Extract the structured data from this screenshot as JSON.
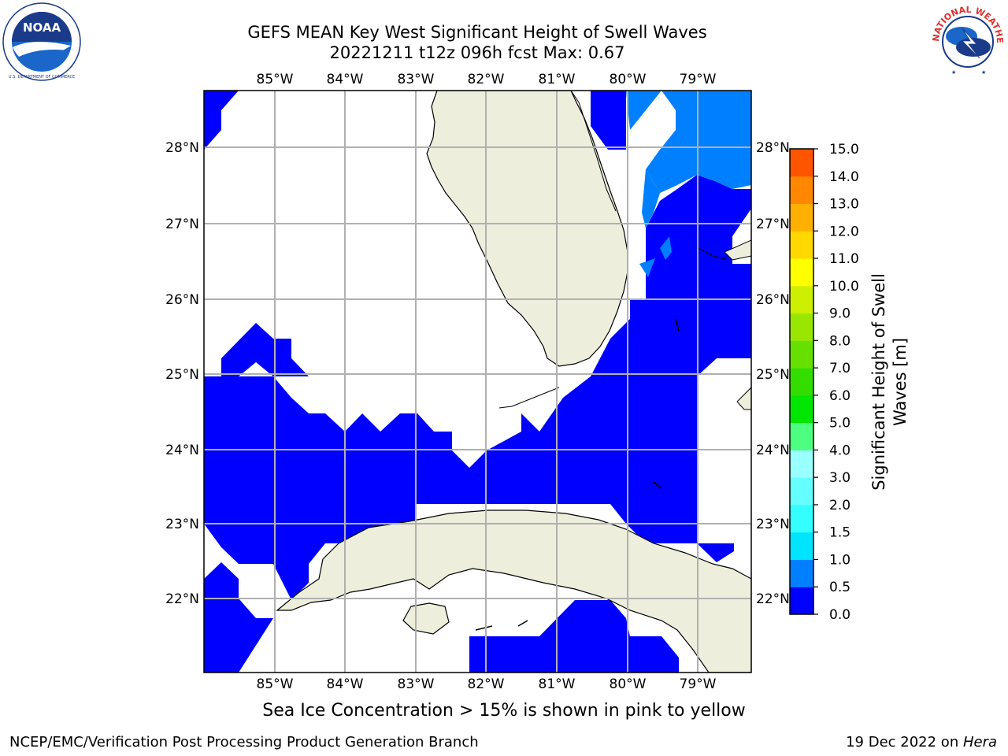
{
  "header": {
    "title_line1": "GEFS MEAN Key West Significant Height of Swell Waves",
    "title_line2": "20221211 t12z 096h fcst   Max: 0.67"
  },
  "logos": {
    "noaa": {
      "text": "NOAA",
      "ring_text": "NATIONAL OCEANIC AND ATMOSPHERIC ADMINISTRATION · U.S. DEPARTMENT OF COMMERCE"
    },
    "nws": {
      "ring_text": "NATIONAL WEATHER SERVICE"
    }
  },
  "map": {
    "lon_labels": [
      "85°W",
      "84°W",
      "83°W",
      "82°W",
      "81°W",
      "80°W",
      "79°W"
    ],
    "lat_labels": [
      "28°N",
      "27°N",
      "26°N",
      "25°N",
      "24°N",
      "23°N",
      "22°N"
    ],
    "land_color": "#eeeedd",
    "ocean_color": "#ffffff",
    "grid_color": "#b0b0b0"
  },
  "colorbar": {
    "label": "Significant Height of Swell Waves [m]",
    "label_line1": "Significant Height of Swell",
    "label_line2": "Waves [m]",
    "ticks": [
      "0.0",
      "0.5",
      "1.0",
      "1.5",
      "2.0",
      "3.0",
      "4.0",
      "5.0",
      "6.0",
      "7.0",
      "8.0",
      "9.0",
      "10.0",
      "11.0",
      "12.0",
      "13.0",
      "14.0",
      "15.0"
    ],
    "colors": [
      "#0000ff",
      "#0080ff",
      "#00e5ff",
      "#33ffff",
      "#66ffff",
      "#99ffff",
      "#4cff80",
      "#00e600",
      "#33dd00",
      "#66e000",
      "#99e600",
      "#ccf000",
      "#ffff00",
      "#ffd800",
      "#ffb000",
      "#ff8800",
      "#ff5500",
      "#ff2200",
      "#ff0000"
    ]
  },
  "caption": "Sea Ice Concentration > 15% is shown in pink to yellow",
  "footer": {
    "left": "NCEP/EMC/Verification Post Processing Product Generation Branch",
    "right_date": "19 Dec 2022 on ",
    "right_host": "Hera"
  }
}
